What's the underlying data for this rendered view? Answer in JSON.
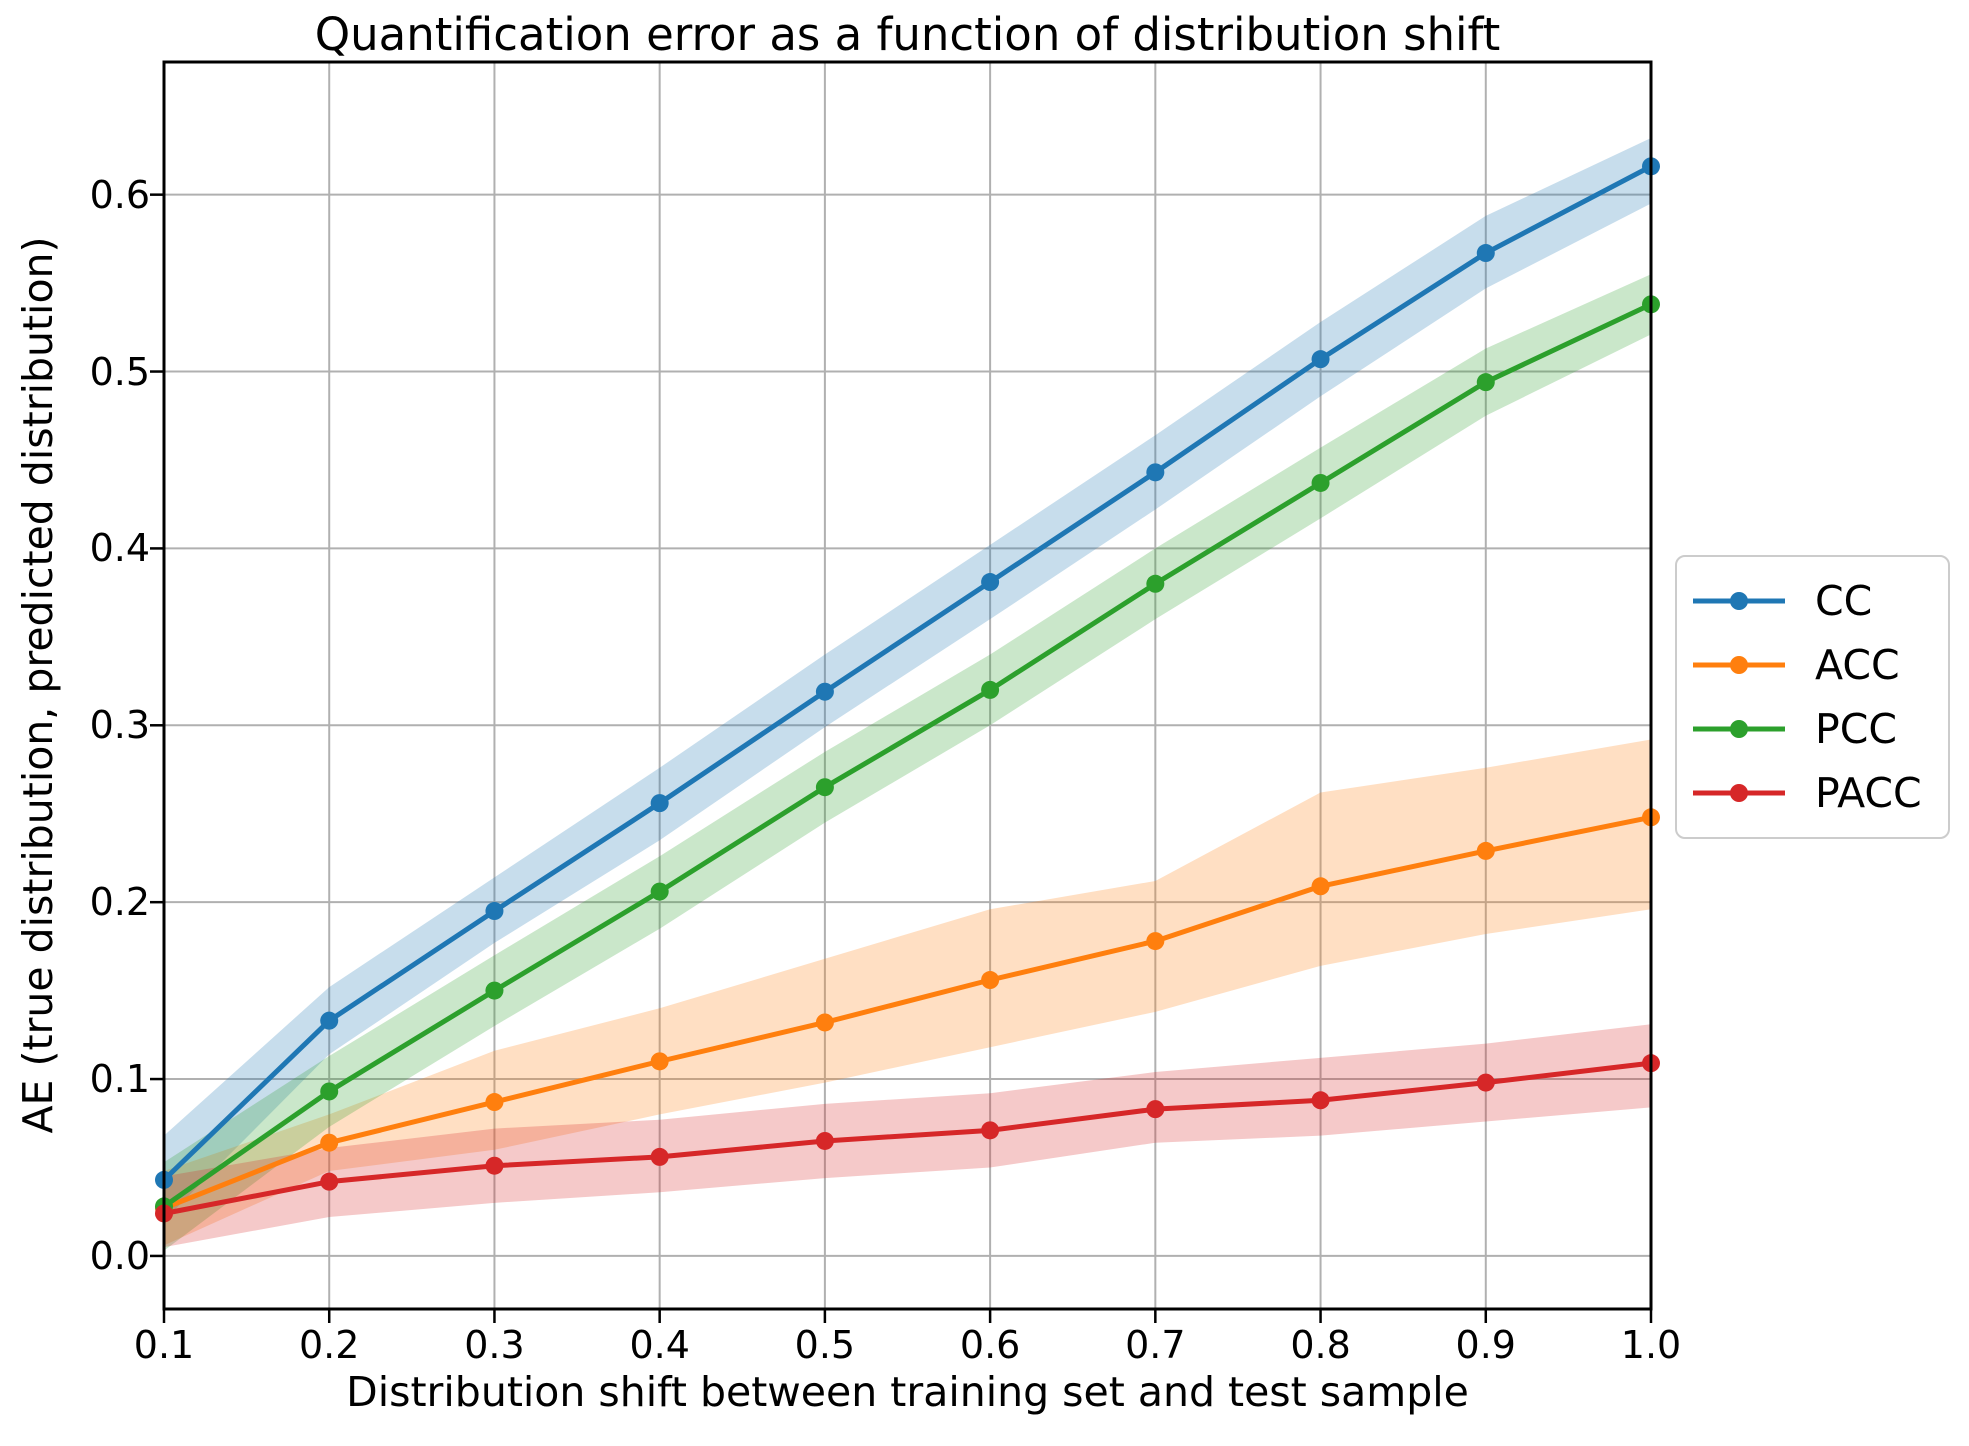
{
  "chart_data": {
    "type": "line",
    "title": "Quantification error as a function of distribution shift",
    "xlabel": "Distribution shift between training set and test sample",
    "ylabel": "AE (true distribution, predicted distribution)",
    "x": [
      0.1,
      0.2,
      0.3,
      0.4,
      0.5,
      0.6,
      0.7,
      0.8,
      0.9,
      1.0
    ],
    "xlim": [
      0.1,
      1.0
    ],
    "ylim": [
      -0.03,
      0.675
    ],
    "xticks": [
      "0.1",
      "0.2",
      "0.3",
      "0.4",
      "0.5",
      "0.6",
      "0.7",
      "0.8",
      "0.9",
      "1.0"
    ],
    "xtick_values": [
      0.1,
      0.2,
      0.3,
      0.4,
      0.5,
      0.6,
      0.7,
      0.8,
      0.9,
      1.0
    ],
    "yticks": [
      "0.0",
      "0.1",
      "0.2",
      "0.3",
      "0.4",
      "0.5",
      "0.6"
    ],
    "ytick_values": [
      0.0,
      0.1,
      0.2,
      0.3,
      0.4,
      0.5,
      0.6
    ],
    "grid": true,
    "legend_position": "outside-right",
    "band_opacity": 0.25,
    "series": [
      {
        "name": "CC",
        "color": "#1f77b4",
        "values": [
          0.043,
          0.133,
          0.195,
          0.256,
          0.319,
          0.381,
          0.443,
          0.507,
          0.567,
          0.616
        ],
        "band_lower": [
          0.02,
          0.114,
          0.177,
          0.235,
          0.299,
          0.36,
          0.422,
          0.486,
          0.547,
          0.595
        ],
        "band_upper": [
          0.068,
          0.152,
          0.214,
          0.276,
          0.34,
          0.402,
          0.464,
          0.528,
          0.588,
          0.632
        ]
      },
      {
        "name": "ACC",
        "color": "#ff7f0e",
        "values": [
          0.027,
          0.064,
          0.087,
          0.11,
          0.132,
          0.156,
          0.178,
          0.209,
          0.229,
          0.248
        ],
        "band_lower": [
          0.006,
          0.048,
          0.06,
          0.08,
          0.098,
          0.118,
          0.138,
          0.164,
          0.182,
          0.196
        ],
        "band_upper": [
          0.048,
          0.08,
          0.116,
          0.14,
          0.168,
          0.196,
          0.212,
          0.262,
          0.276,
          0.292
        ]
      },
      {
        "name": "PCC",
        "color": "#2ca02c",
        "values": [
          0.028,
          0.093,
          0.15,
          0.206,
          0.265,
          0.32,
          0.38,
          0.437,
          0.494,
          0.538
        ],
        "band_lower": [
          0.003,
          0.073,
          0.13,
          0.185,
          0.245,
          0.3,
          0.36,
          0.417,
          0.475,
          0.521
        ],
        "band_upper": [
          0.053,
          0.113,
          0.17,
          0.226,
          0.285,
          0.34,
          0.4,
          0.457,
          0.513,
          0.555
        ]
      },
      {
        "name": "PACC",
        "color": "#d62728",
        "values": [
          0.024,
          0.042,
          0.051,
          0.056,
          0.065,
          0.071,
          0.083,
          0.088,
          0.098,
          0.109
        ],
        "band_lower": [
          0.005,
          0.022,
          0.03,
          0.036,
          0.044,
          0.05,
          0.064,
          0.068,
          0.076,
          0.084
        ],
        "band_upper": [
          0.045,
          0.061,
          0.072,
          0.077,
          0.086,
          0.092,
          0.104,
          0.112,
          0.12,
          0.131
        ]
      }
    ],
    "colors": {
      "grid": "#b0b0b0",
      "spine": "#000000",
      "background": "#ffffff",
      "legend_border": "#cccccc"
    }
  }
}
